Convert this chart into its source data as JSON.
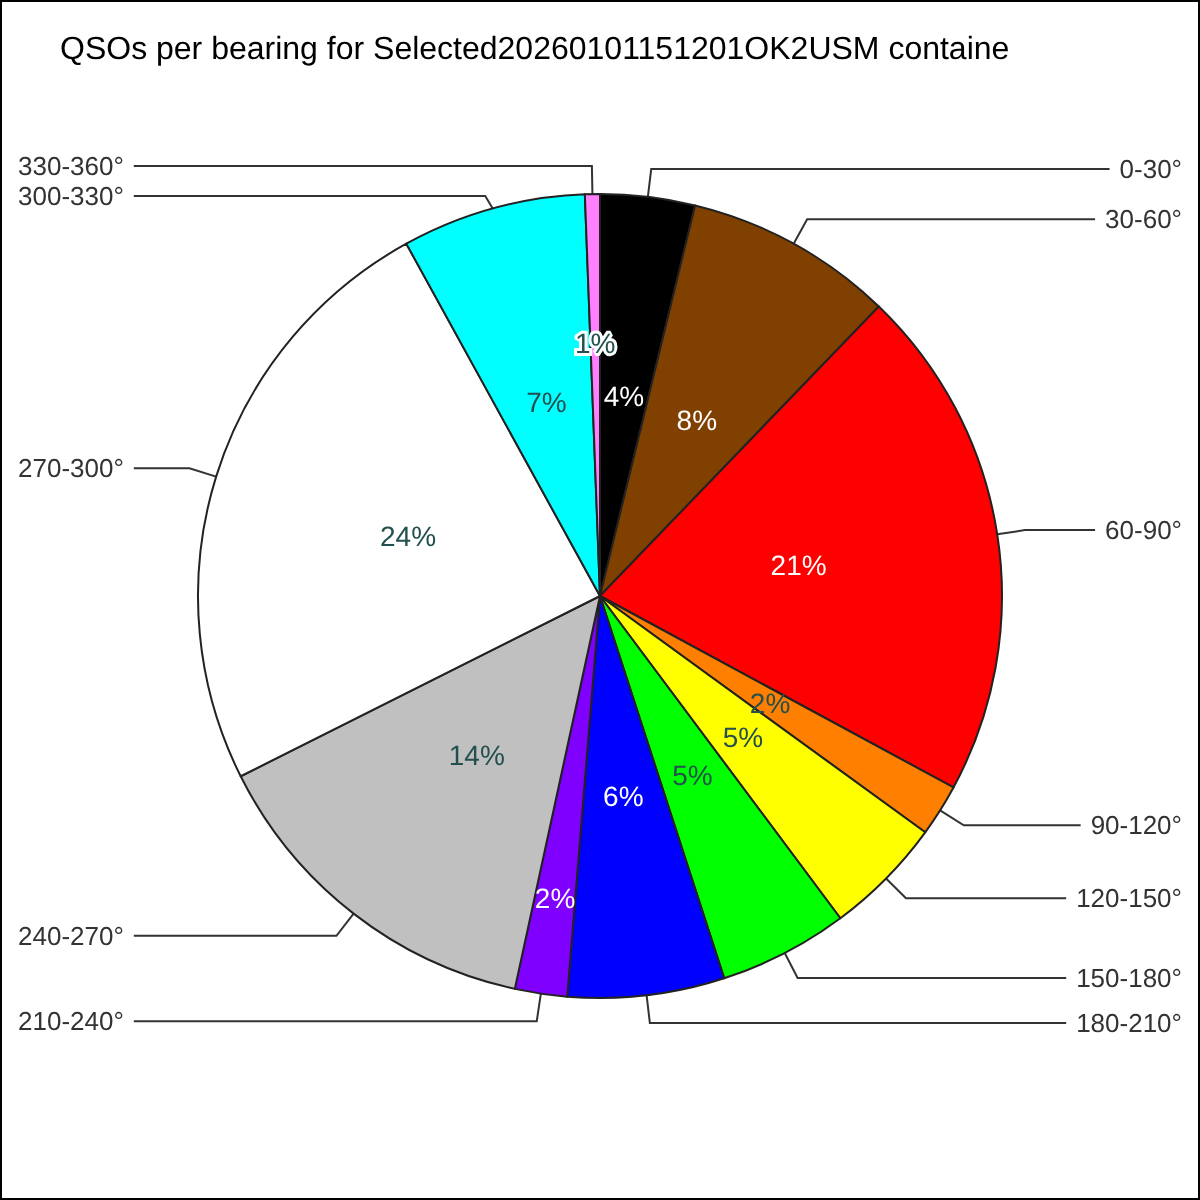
{
  "chart_data": {
    "type": "pie",
    "title": "QSOs per bearing for Selected20260101151201OK2USM containe",
    "categories": [
      "0-30°",
      "30-60°",
      "60-90°",
      "90-120°",
      "120-150°",
      "150-180°",
      "180-210°",
      "210-240°",
      "240-270°",
      "270-300°",
      "300-330°",
      "330-360°"
    ],
    "values": [
      3.8,
      8.4,
      20.7,
      2.1,
      4.8,
      5.2,
      6.3,
      2.1,
      14.2,
      24.4,
      7.4,
      0.6
    ],
    "value_labels": [
      "4%",
      "8%",
      "21%",
      "2%",
      "5%",
      "5%",
      "6%",
      "2%",
      "14%",
      "24%",
      "7%",
      "1%"
    ],
    "colors": [
      "#000000",
      "#804000",
      "#ff0000",
      "#ff8000",
      "#ffff00",
      "#00ff00",
      "#0000ff",
      "#8000ff",
      "#c0c0c0",
      "#ffffff",
      "#00ffff",
      "#ff80ff"
    ]
  }
}
